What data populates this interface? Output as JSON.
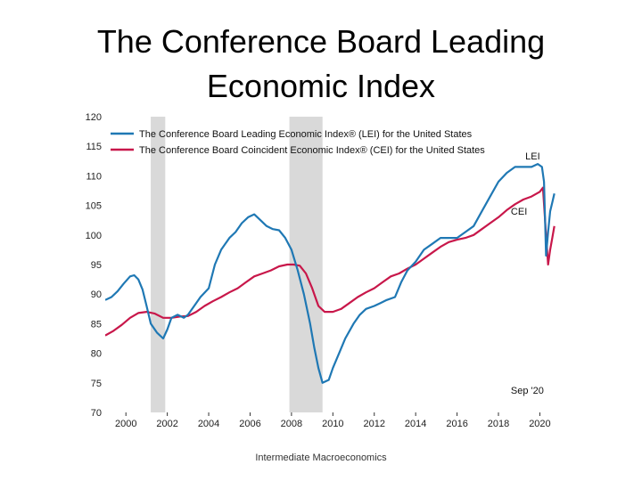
{
  "slide": {
    "title_line1": "The Conference Board Leading",
    "title_line2": "Economic Index",
    "footer": "Intermediate Macroeconomics"
  },
  "chart_data": {
    "type": "line",
    "title": "The Conference Board Leading Economic Index",
    "xlabel": "",
    "ylabel": "",
    "xlim": [
      1999,
      2020.8
    ],
    "ylim": [
      70,
      120
    ],
    "yticks": [
      70,
      75,
      80,
      85,
      90,
      95,
      100,
      105,
      110,
      115,
      120
    ],
    "xticks": [
      2000,
      2002,
      2004,
      2006,
      2008,
      2010,
      2012,
      2014,
      2016,
      2018,
      2020
    ],
    "recessions": [
      [
        2001.2,
        2001.9
      ],
      [
        2007.9,
        2009.5
      ]
    ],
    "legend_position": "top-left",
    "annotations": {
      "lei": "LEI",
      "cei": "CEI",
      "date": "Sep '20"
    },
    "series": [
      {
        "name": "The Conference Board Leading Economic Index® (LEI) for the United States",
        "short": "LEI",
        "color": "#1f78b4",
        "x": [
          1999,
          1999.3,
          1999.6,
          1999.9,
          2000.2,
          2000.4,
          2000.6,
          2000.8,
          2001.0,
          2001.2,
          2001.5,
          2001.8,
          2002.0,
          2002.2,
          2002.5,
          2002.8,
          2003.0,
          2003.3,
          2003.6,
          2004.0,
          2004.3,
          2004.6,
          2005.0,
          2005.3,
          2005.6,
          2005.9,
          2006.2,
          2006.5,
          2006.8,
          2007.1,
          2007.4,
          2007.7,
          2008.0,
          2008.3,
          2008.6,
          2008.9,
          2009.1,
          2009.3,
          2009.5,
          2009.8,
          2010.0,
          2010.3,
          2010.6,
          2011.0,
          2011.3,
          2011.6,
          2012.0,
          2012.3,
          2012.6,
          2013.0,
          2013.3,
          2013.6,
          2014.0,
          2014.4,
          2014.8,
          2015.2,
          2015.6,
          2016.0,
          2016.4,
          2016.8,
          2017.2,
          2017.6,
          2018.0,
          2018.4,
          2018.8,
          2019.2,
          2019.6,
          2019.9,
          2020.1,
          2020.2,
          2020.3,
          2020.4,
          2020.5,
          2020.6,
          2020.7
        ],
        "values": [
          89,
          89.5,
          90.5,
          91.8,
          93,
          93.2,
          92.5,
          90.8,
          88,
          85,
          83.5,
          82.5,
          84,
          86,
          86.5,
          86,
          86.5,
          88,
          89.5,
          91,
          95,
          97.5,
          99.5,
          100.5,
          102,
          103,
          103.5,
          102.5,
          101.5,
          101,
          100.8,
          99.5,
          97.5,
          94,
          90,
          85,
          81,
          77.5,
          75,
          75.5,
          77.5,
          80,
          82.5,
          85,
          86.5,
          87.5,
          88,
          88.5,
          89,
          89.5,
          92,
          94,
          95.5,
          97.5,
          98.5,
          99.5,
          99.5,
          99.5,
          100.5,
          101.5,
          104,
          106.5,
          109,
          110.5,
          111.5,
          111.5,
          111.5,
          112,
          111.5,
          109,
          96.5,
          100.5,
          104,
          105.5,
          107
        ]
      },
      {
        "name": "The Conference Board Coincident Economic Index® (CEI) for the United States",
        "short": "CEI",
        "color": "#c8174a",
        "x": [
          1999,
          1999.4,
          1999.8,
          2000.2,
          2000.6,
          2001.0,
          2001.4,
          2001.8,
          2002.2,
          2002.6,
          2003.0,
          2003.4,
          2003.8,
          2004.2,
          2004.6,
          2005.0,
          2005.4,
          2005.8,
          2006.2,
          2006.6,
          2007.0,
          2007.4,
          2007.8,
          2008.1,
          2008.4,
          2008.7,
          2009.0,
          2009.3,
          2009.6,
          2010.0,
          2010.4,
          2010.8,
          2011.2,
          2011.6,
          2012.0,
          2012.4,
          2012.8,
          2013.2,
          2013.6,
          2014.0,
          2014.4,
          2014.8,
          2015.2,
          2015.6,
          2016.0,
          2016.4,
          2016.8,
          2017.2,
          2017.6,
          2018.0,
          2018.4,
          2018.8,
          2019.2,
          2019.6,
          2020.0,
          2020.15,
          2020.3,
          2020.4,
          2020.5,
          2020.6,
          2020.7
        ],
        "values": [
          83,
          83.8,
          84.8,
          86,
          86.8,
          87,
          86.7,
          86,
          86,
          86.2,
          86.3,
          87,
          88,
          88.8,
          89.5,
          90.3,
          91,
          92,
          93,
          93.5,
          94,
          94.7,
          95,
          95,
          94.8,
          93.5,
          91,
          88,
          87,
          87,
          87.5,
          88.5,
          89.5,
          90.3,
          91,
          92,
          93,
          93.5,
          94.3,
          95,
          96,
          97,
          98,
          98.8,
          99.2,
          99.5,
          100,
          101,
          102,
          103,
          104.2,
          105.2,
          106,
          106.5,
          107.3,
          108,
          100,
          95,
          97.5,
          99.5,
          101.5
        ]
      }
    ]
  }
}
